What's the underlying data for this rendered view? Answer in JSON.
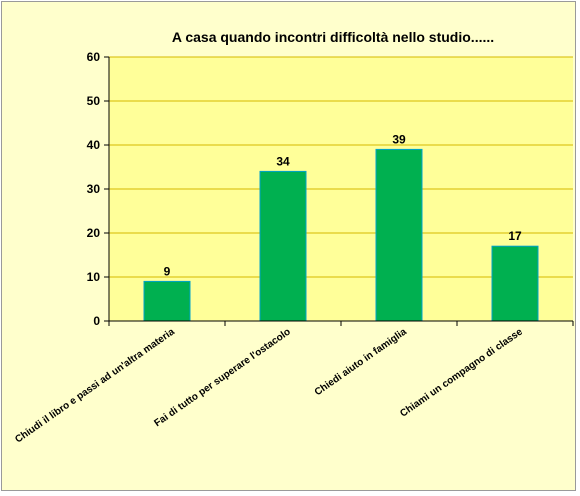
{
  "chart_data": {
    "type": "bar",
    "title": "A casa quando incontri difficoltà nello studio......",
    "categories": [
      "Chiudi il libro e passi ad un'altra materia",
      "Fai di tutto per superare l'ostacolo",
      "Chiedi aiuto in famiglia",
      "Chiami un compagno di classe"
    ],
    "values": [
      9,
      34,
      39,
      17
    ],
    "ylim": [
      0,
      60
    ],
    "yticks": [
      0,
      10,
      20,
      30,
      40,
      50,
      60
    ],
    "grid": true,
    "legend": "none",
    "colors": {
      "bar": "#00b050",
      "bar_edge": "#00a3cc",
      "plot_bg": "#ffff99",
      "grid": "#d4b800",
      "outer_bg": "#ffffcc"
    }
  }
}
